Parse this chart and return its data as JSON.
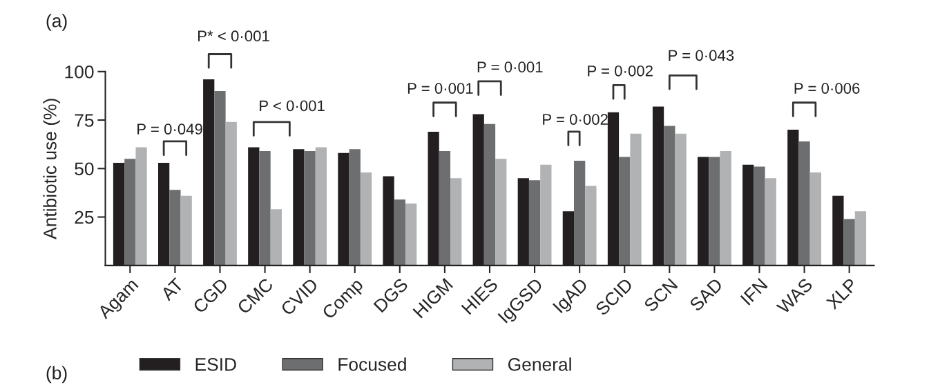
{
  "chart_data": {
    "type": "bar",
    "ylabel": "Antibiotic use (%)",
    "categories": [
      "Agam",
      "AT",
      "CGD",
      "CMC",
      "CVID",
      "Comp",
      "DGS",
      "HIGM",
      "HIES",
      "IgGSD",
      "IgAD",
      "SCID",
      "SCN",
      "SAD",
      "IFN",
      "WAS",
      "XLP"
    ],
    "series": [
      {
        "name": "ESID",
        "color": "#231f20",
        "values": [
          53,
          53,
          96,
          61,
          60,
          58,
          46,
          69,
          78,
          45,
          28,
          79,
          82,
          56,
          52,
          70,
          36
        ]
      },
      {
        "name": "Focused",
        "color": "#6d6e70",
        "values": [
          55,
          39,
          90,
          59,
          59,
          60,
          34,
          59,
          73,
          44,
          54,
          56,
          72,
          56,
          51,
          64,
          24
        ]
      },
      {
        "name": "General",
        "color": "#b1b2b4",
        "values": [
          61,
          36,
          74,
          29,
          61,
          48,
          32,
          45,
          55,
          52,
          41,
          68,
          68,
          59,
          45,
          48,
          28
        ]
      }
    ],
    "ylim": [
      0,
      100
    ],
    "yticks": [
      25,
      50,
      75,
      100
    ],
    "grid": false,
    "legend": "bottom",
    "annotations": [
      "(a)",
      "(b)",
      "P = 0·049",
      "P* < 0·001",
      "P < 0·001",
      "P = 0·001",
      "P = 0·001",
      "P = 0·002",
      "P = 0·002",
      "P = 0·043",
      "P = 0·006"
    ]
  }
}
